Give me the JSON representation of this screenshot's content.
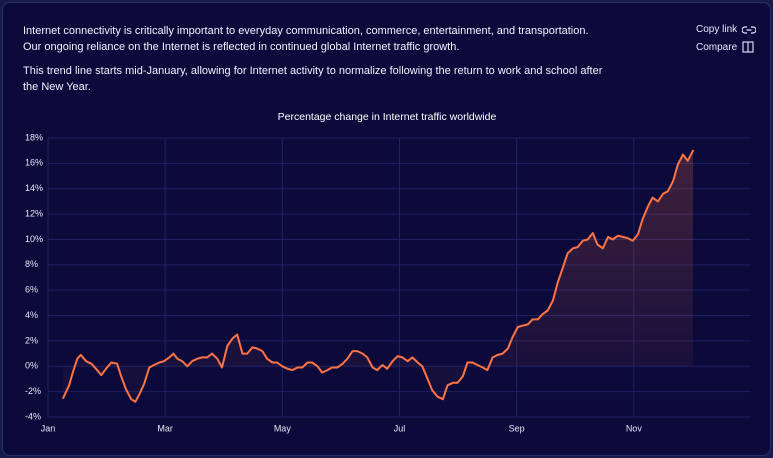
{
  "header": {
    "paragraphs": [
      [
        "Internet connectivity is critically important to everyday communication, commerce, entertainment, and transportation.",
        "Our ongoing reliance on the Internet is reflected in continued global Internet traffic growth."
      ],
      [
        "This trend line starts mid-January, allowing for Internet activity to normalize following the return to work and school after",
        "the New Year."
      ]
    ]
  },
  "actions": [
    "Copy link",
    "Compare"
  ],
  "chart_data": {
    "type": "line",
    "title": "Percentage change in Internet traffic worldwide",
    "color": "#ff7444",
    "grid": true,
    "xlim": [
      0,
      12
    ],
    "xticks": [
      {
        "value": 0,
        "label": "Jan"
      },
      {
        "value": 2,
        "label": "Mar"
      },
      {
        "value": 4,
        "label": "May"
      },
      {
        "value": 6,
        "label": "Jul"
      },
      {
        "value": 8,
        "label": "Sep"
      },
      {
        "value": 10,
        "label": "Nov"
      }
    ],
    "ylim": [
      -4,
      18
    ],
    "yticks": [
      {
        "value": -4,
        "label": "-4%"
      },
      {
        "value": -2,
        "label": "-2%"
      },
      {
        "value": 0,
        "label": "0%"
      },
      {
        "value": 2,
        "label": "2%"
      },
      {
        "value": 4,
        "label": "4%"
      },
      {
        "value": 6,
        "label": "6%"
      },
      {
        "value": 8,
        "label": "8%"
      },
      {
        "value": 10,
        "label": "10%"
      },
      {
        "value": 12,
        "label": "12%"
      },
      {
        "value": 14,
        "label": "14%"
      },
      {
        "value": 16,
        "label": "16%"
      },
      {
        "value": 18,
        "label": "18%"
      }
    ],
    "x": [
      0.26,
      0.36,
      0.43,
      0.5,
      0.56,
      0.65,
      0.74,
      0.82,
      0.91,
      0.99,
      1.08,
      1.18,
      1.25,
      1.33,
      1.42,
      1.49,
      1.56,
      1.64,
      1.73,
      1.81,
      1.9,
      1.98,
      2.07,
      2.14,
      2.21,
      2.29,
      2.38,
      2.46,
      2.55,
      2.63,
      2.72,
      2.8,
      2.89,
      2.97,
      3.06,
      3.15,
      3.23,
      3.32,
      3.4,
      3.49,
      3.57,
      3.66,
      3.74,
      3.83,
      3.91,
      4.0,
      4.09,
      4.17,
      4.26,
      4.34,
      4.43,
      4.51,
      4.6,
      4.68,
      4.77,
      4.85,
      4.94,
      5.03,
      5.11,
      5.2,
      5.28,
      5.37,
      5.45,
      5.54,
      5.62,
      5.71,
      5.79,
      5.88,
      5.97,
      6.05,
      6.14,
      6.22,
      6.31,
      6.39,
      6.48,
      6.56,
      6.65,
      6.74,
      6.82,
      6.91,
      6.99,
      7.08,
      7.16,
      7.25,
      7.33,
      7.42,
      7.5,
      7.59,
      7.68,
      7.76,
      7.85,
      7.93,
      8.02,
      8.1,
      8.19,
      8.27,
      8.36,
      8.44,
      8.53,
      8.62,
      8.7,
      8.79,
      8.87,
      8.96,
      9.04,
      9.13,
      9.21,
      9.3,
      9.38,
      9.47,
      9.56,
      9.64,
      9.73,
      9.81,
      9.9,
      9.98,
      10.07,
      10.15,
      10.24,
      10.32,
      10.41,
      10.5,
      10.58,
      10.67,
      10.75,
      10.84,
      10.92,
      11.01
    ],
    "values": [
      -2.5,
      -1.5,
      -0.4,
      0.6,
      0.9,
      0.4,
      0.2,
      -0.2,
      -0.7,
      -0.2,
      0.3,
      0.2,
      -0.8,
      -1.8,
      -2.6,
      -2.8,
      -2.2,
      -1.4,
      -0.1,
      0.1,
      0.3,
      0.4,
      0.7,
      1.0,
      0.6,
      0.4,
      0,
      0.4,
      0.6,
      0.7,
      0.7,
      1.0,
      0.6,
      -0.1,
      1.6,
      2.2,
      2.5,
      1.0,
      1.0,
      1.5,
      1.4,
      1.2,
      0.6,
      0.3,
      0.3,
      0,
      -0.2,
      -0.3,
      -0.1,
      -0.1,
      0.3,
      0.3,
      0,
      -0.5,
      -0.3,
      -0.1,
      -0.1,
      0.2,
      0.6,
      1.2,
      1.2,
      1.0,
      0.7,
      -0.1,
      -0.3,
      0.1,
      -0.2,
      0.4,
      0.8,
      0.7,
      0.4,
      0.7,
      0.3,
      0,
      -1.0,
      -1.9,
      -2.4,
      -2.6,
      -1.5,
      -1.3,
      -1.3,
      -0.8,
      0.3,
      0.3,
      0.1,
      -0.1,
      -0.3,
      0.7,
      0.9,
      1.0,
      1.4,
      2.3,
      3.1,
      3.2,
      3.3,
      3.7,
      3.7,
      4.1,
      4.4,
      5.2,
      6.6,
      7.8,
      8.9,
      9.3,
      9.4,
      9.9,
      10.0,
      10.5,
      9.6,
      9.3,
      10.2,
      10.0,
      10.3,
      10.2,
      10.1,
      9.9,
      10.4,
      11.6,
      12.6,
      13.3,
      13.0,
      13.6,
      13.8,
      14.6,
      15.9,
      16.7,
      16.2,
      17.0
    ]
  }
}
